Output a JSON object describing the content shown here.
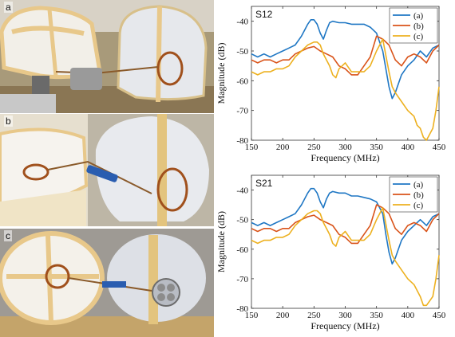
{
  "photos": [
    {
      "label": "a",
      "description": "Rectangular loop antenna fed by coaxial cable on phantom head"
    },
    {
      "label": "b",
      "description": "Circular loop with feed arm on phantom head"
    },
    {
      "label": "c",
      "description": "Circular loop antenna with four-port connector on phantom head"
    }
  ],
  "chart_data": [
    {
      "type": "line",
      "title": "S12",
      "xlabel": "Frequency (MHz)",
      "ylabel": "Magnitude (dB)",
      "xlim": [
        150,
        450
      ],
      "ylim": [
        -80,
        -35
      ],
      "xticks": [
        150,
        200,
        250,
        300,
        350,
        400,
        450
      ],
      "yticks": [
        -40,
        -50,
        -60,
        -70,
        -80
      ],
      "legend_position": "top-right",
      "series": [
        {
          "name": "(a)",
          "color": "#1f77c4",
          "x": [
            150,
            160,
            170,
            180,
            190,
            200,
            210,
            220,
            230,
            240,
            245,
            250,
            255,
            260,
            265,
            270,
            275,
            280,
            290,
            300,
            310,
            320,
            330,
            340,
            350,
            360,
            365,
            370,
            375,
            380,
            390,
            400,
            410,
            420,
            430,
            440,
            450
          ],
          "y": [
            -51,
            -52,
            -51,
            -52,
            -51,
            -50,
            -49,
            -48,
            -45,
            -41,
            -39.5,
            -39.5,
            -41,
            -44,
            -46,
            -43,
            -40.5,
            -40,
            -40.5,
            -40.5,
            -41,
            -41,
            -41,
            -42,
            -44,
            -50,
            -56,
            -62,
            -66,
            -64,
            -58,
            -55,
            -53,
            -50,
            -52,
            -49,
            -48
          ]
        },
        {
          "name": "(b)",
          "color": "#d95319",
          "x": [
            150,
            160,
            170,
            180,
            190,
            200,
            210,
            220,
            230,
            240,
            250,
            260,
            270,
            280,
            290,
            300,
            310,
            320,
            330,
            340,
            350,
            360,
            370,
            380,
            390,
            400,
            410,
            420,
            430,
            440,
            450
          ],
          "y": [
            -53,
            -54,
            -53,
            -53,
            -54,
            -53,
            -53,
            -51,
            -50,
            -49,
            -48.5,
            -50,
            -51,
            -52,
            -55,
            -56,
            -58,
            -58,
            -55,
            -52,
            -45,
            -46,
            -48,
            -53,
            -55,
            -52,
            -51,
            -52,
            -54,
            -50,
            -48
          ]
        },
        {
          "name": "(c)",
          "color": "#edb120",
          "x": [
            150,
            160,
            170,
            180,
            190,
            200,
            210,
            220,
            230,
            240,
            250,
            255,
            260,
            265,
            270,
            275,
            280,
            285,
            290,
            300,
            310,
            320,
            330,
            340,
            350,
            360,
            370,
            375,
            380,
            390,
            400,
            410,
            415,
            420,
            425,
            430,
            440,
            445,
            450
          ],
          "y": [
            -57,
            -58,
            -57,
            -57,
            -56,
            -56,
            -55,
            -52,
            -50,
            -48,
            -47,
            -47,
            -48,
            -51,
            -53,
            -55,
            -58,
            -59,
            -56,
            -54,
            -57,
            -57,
            -57,
            -55,
            -50,
            -46,
            -57,
            -62,
            -64,
            -67,
            -70,
            -72,
            -75,
            -76,
            -79,
            -80,
            -76,
            -70,
            -62
          ]
        }
      ]
    },
    {
      "type": "line",
      "title": "S21",
      "xlabel": "Frequency (MHz)",
      "ylabel": "Magnitude (dB)",
      "xlim": [
        150,
        450
      ],
      "ylim": [
        -80,
        -35
      ],
      "xticks": [
        150,
        200,
        250,
        300,
        350,
        400,
        450
      ],
      "yticks": [
        -40,
        -50,
        -60,
        -70,
        -80
      ],
      "legend_position": "top-right",
      "series": [
        {
          "name": "(a)",
          "color": "#1f77c4",
          "x": [
            150,
            160,
            170,
            180,
            190,
            200,
            210,
            220,
            230,
            240,
            245,
            250,
            255,
            260,
            265,
            270,
            275,
            280,
            290,
            300,
            310,
            320,
            330,
            340,
            350,
            360,
            365,
            370,
            375,
            380,
            390,
            400,
            410,
            420,
            430,
            440,
            450
          ],
          "y": [
            -51,
            -52,
            -51,
            -52,
            -51,
            -50,
            -49,
            -48,
            -45,
            -41,
            -39.5,
            -39.5,
            -41,
            -44,
            -46,
            -43,
            -41,
            -40.5,
            -41,
            -41,
            -42,
            -42,
            -42.5,
            -43,
            -44,
            -48,
            -55,
            -61,
            -65,
            -63,
            -57,
            -54,
            -52,
            -50,
            -52,
            -49,
            -48
          ]
        },
        {
          "name": "(b)",
          "color": "#d95319",
          "x": [
            150,
            160,
            170,
            180,
            190,
            200,
            210,
            220,
            230,
            240,
            250,
            260,
            270,
            280,
            290,
            300,
            310,
            320,
            330,
            340,
            350,
            360,
            370,
            380,
            390,
            400,
            410,
            420,
            430,
            440,
            450
          ],
          "y": [
            -53,
            -54,
            -53,
            -53,
            -54,
            -53,
            -53,
            -51,
            -50,
            -49,
            -48.5,
            -50,
            -51,
            -52,
            -55,
            -56,
            -58,
            -58,
            -55,
            -52,
            -45,
            -46,
            -48,
            -53,
            -55,
            -52,
            -51,
            -52,
            -54,
            -50,
            -48
          ]
        },
        {
          "name": "(c)",
          "color": "#edb120",
          "x": [
            150,
            160,
            170,
            180,
            190,
            200,
            210,
            220,
            230,
            240,
            250,
            255,
            260,
            265,
            270,
            275,
            280,
            285,
            290,
            300,
            310,
            320,
            330,
            340,
            350,
            360,
            370,
            375,
            380,
            390,
            400,
            410,
            415,
            420,
            425,
            430,
            440,
            445,
            450
          ],
          "y": [
            -57,
            -58,
            -57,
            -57,
            -56,
            -56,
            -55,
            -52,
            -50,
            -48,
            -47,
            -47,
            -48,
            -51,
            -53,
            -55,
            -58,
            -59,
            -56,
            -54,
            -57,
            -57,
            -57,
            -55,
            -50,
            -46,
            -57,
            -62,
            -64,
            -67,
            -70,
            -72,
            -74,
            -76,
            -79,
            -79,
            -76,
            -70,
            -62
          ]
        }
      ]
    }
  ]
}
